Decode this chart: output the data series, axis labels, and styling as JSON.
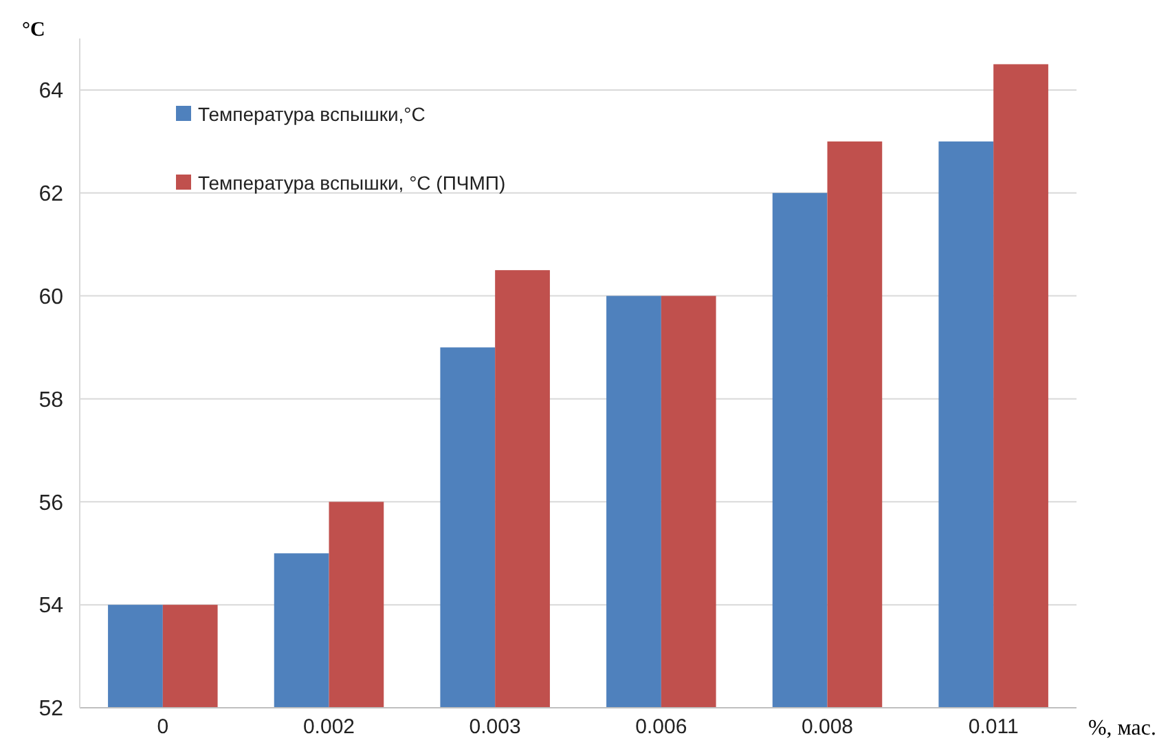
{
  "chart_data": {
    "type": "bar",
    "ylabel": "°C",
    "xlabel": "%, мас.",
    "categories": [
      "0",
      "0.002",
      "0.003",
      "0.006",
      "0.008",
      "0.011"
    ],
    "series": [
      {
        "name": "Температура вспышки,°C",
        "color": "#4f81bd",
        "values": [
          54,
          55,
          59,
          60,
          62,
          63
        ]
      },
      {
        "name": "Температура вспышки, °C (ПЧМП)",
        "color": "#c0504d",
        "values": [
          54,
          56,
          60.5,
          60,
          63,
          64.5
        ]
      }
    ],
    "ylim": [
      52,
      65
    ],
    "yticks": [
      52,
      54,
      56,
      58,
      60,
      62,
      64
    ],
    "grid": "y",
    "legend": "top left"
  }
}
